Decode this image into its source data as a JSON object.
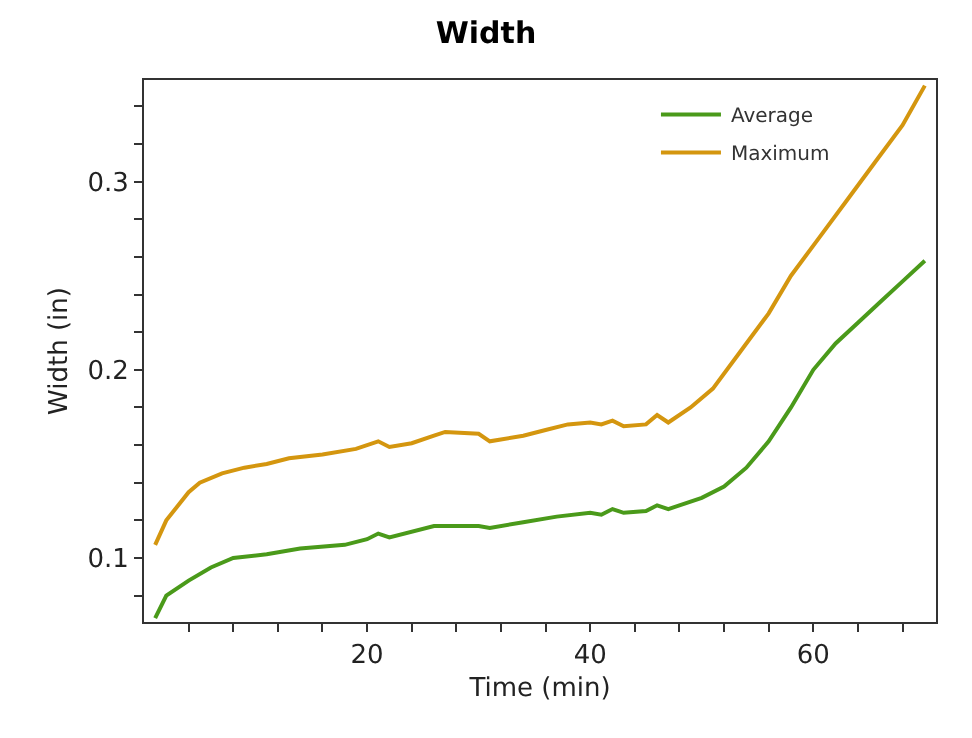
{
  "chart_data": {
    "type": "line",
    "title": "Width",
    "xlabel": "Time (min)",
    "ylabel": "Width (in)",
    "xlim": [
      0,
      71
    ],
    "xticks": [
      {
        "value": 4,
        "label": null
      },
      {
        "value": 8,
        "label": null
      },
      {
        "value": 12,
        "label": null
      },
      {
        "value": 16,
        "label": null
      },
      20,
      {
        "value": 24,
        "label": null
      },
      {
        "value": 28,
        "label": null
      },
      {
        "value": 32,
        "label": null
      },
      {
        "value": 36,
        "label": null
      },
      40,
      {
        "value": 44,
        "label": null
      },
      {
        "value": 48,
        "label": null
      },
      {
        "value": 52,
        "label": null
      },
      {
        "value": 56,
        "label": null
      },
      60,
      {
        "value": 64,
        "label": null
      },
      {
        "value": 68,
        "label": null
      }
    ],
    "ylim": [
      0.066,
      0.354
    ],
    "yticks": [
      {
        "value": 0.08,
        "label": null
      },
      0.1,
      {
        "value": 0.12,
        "label": null
      },
      {
        "value": 0.14,
        "label": null
      },
      {
        "value": 0.16,
        "label": null
      },
      {
        "value": 0.18,
        "label": null
      },
      0.2,
      {
        "value": 0.22,
        "label": null
      },
      {
        "value": 0.24,
        "label": null
      },
      {
        "value": 0.26,
        "label": null
      },
      {
        "value": 0.28,
        "label": null
      },
      0.3,
      {
        "value": 0.32,
        "label": null
      },
      {
        "value": 0.34,
        "label": null
      }
    ],
    "legend": "top right",
    "marker": "none",
    "line_style": "solid",
    "series": [
      {
        "name": "Average",
        "color": "#4a9a1a",
        "x": [
          1,
          2,
          4,
          6,
          8,
          11,
          14,
          18,
          20,
          21,
          22,
          26,
          30,
          31,
          34,
          37,
          40,
          41,
          42,
          43,
          45,
          46,
          47,
          50,
          52,
          54,
          56,
          58,
          60,
          62,
          64,
          66,
          68,
          70
        ],
        "values": [
          0.068,
          0.08,
          0.088,
          0.095,
          0.1,
          0.102,
          0.105,
          0.107,
          0.11,
          0.113,
          0.111,
          0.117,
          0.117,
          0.116,
          0.119,
          0.122,
          0.124,
          0.123,
          0.126,
          0.124,
          0.125,
          0.128,
          0.126,
          0.132,
          0.138,
          0.148,
          0.162,
          0.18,
          0.2,
          0.214,
          0.225,
          0.236,
          0.247,
          0.258
        ]
      },
      {
        "name": "Maximum",
        "color": "#d4960f",
        "x": [
          1,
          2,
          4,
          5,
          7,
          9,
          11,
          13,
          16,
          19,
          21,
          22,
          24,
          26,
          27,
          30,
          31,
          34,
          36,
          38,
          40,
          41,
          42,
          43,
          45,
          46,
          47,
          49,
          51,
          53.5,
          56,
          58,
          60.5,
          63,
          65.5,
          68,
          70
        ],
        "values": [
          0.107,
          0.12,
          0.135,
          0.14,
          0.145,
          0.148,
          0.15,
          0.153,
          0.155,
          0.158,
          0.162,
          0.159,
          0.161,
          0.165,
          0.167,
          0.166,
          0.162,
          0.165,
          0.168,
          0.171,
          0.172,
          0.171,
          0.173,
          0.17,
          0.171,
          0.176,
          0.172,
          0.18,
          0.19,
          0.21,
          0.23,
          0.25,
          0.27,
          0.29,
          0.31,
          0.33,
          0.351
        ]
      }
    ]
  }
}
